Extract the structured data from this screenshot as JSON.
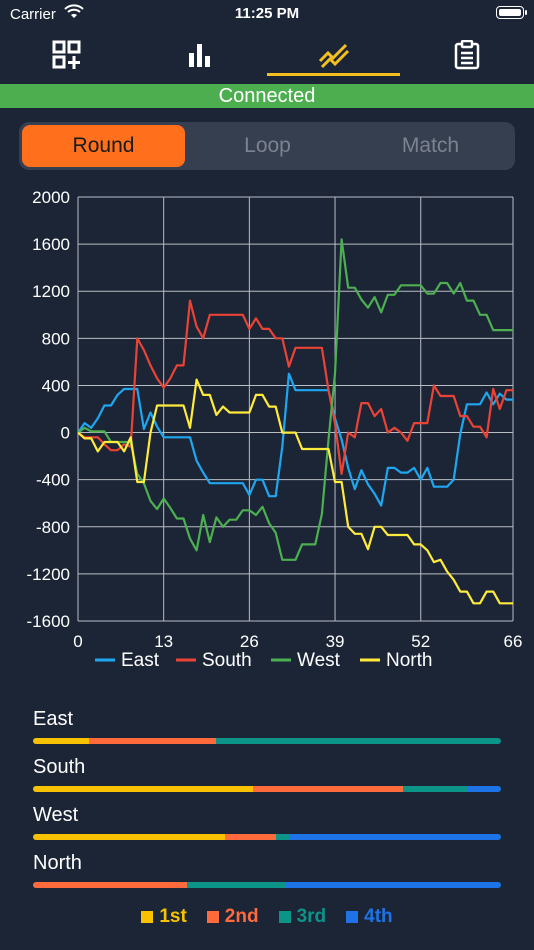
{
  "status_bar": {
    "carrier": "Carrier",
    "time": "11:25 PM"
  },
  "tabs": [
    {
      "icon": "qr-add-icon",
      "active": false
    },
    {
      "icon": "bar-chart-icon",
      "active": false
    },
    {
      "icon": "line-chart-icon",
      "active": true
    },
    {
      "icon": "clipboard-icon",
      "active": false
    }
  ],
  "connection_status": "Connected",
  "segments": {
    "round": "Round",
    "loop": "Loop",
    "match": "Match",
    "selected": "Round"
  },
  "colors": {
    "east": "#1ea7f0",
    "south": "#ea4335",
    "west": "#4caf50",
    "north": "#ffeb3b",
    "first": "#f9c200",
    "second": "#ff6a3d",
    "third": "#0d9488",
    "fourth": "#1e73e6"
  },
  "chart_data": {
    "type": "line",
    "xlim": [
      0,
      66
    ],
    "ylim": [
      -1600,
      2000
    ],
    "x_ticks": [
      "0",
      "13",
      "26",
      "39",
      "52",
      "66"
    ],
    "y_ticks": [
      "2000",
      "1600",
      "1200",
      "800",
      "400",
      "0",
      "-400",
      "-800",
      "-1200",
      "-1600"
    ],
    "series": [
      {
        "name": "East",
        "color": "#1ea7f0",
        "points": [
          [
            0,
            0
          ],
          [
            1,
            80
          ],
          [
            2,
            40
          ],
          [
            3,
            120
          ],
          [
            4,
            230
          ],
          [
            5,
            230
          ],
          [
            6,
            320
          ],
          [
            7,
            370
          ],
          [
            8,
            370
          ],
          [
            9,
            370
          ],
          [
            10,
            30
          ],
          [
            11,
            170
          ],
          [
            12,
            50
          ],
          [
            13,
            -40
          ],
          [
            14,
            -40
          ],
          [
            15,
            -40
          ],
          [
            16,
            -40
          ],
          [
            17,
            -40
          ],
          [
            18,
            -240
          ],
          [
            19,
            -340
          ],
          [
            20,
            -430
          ],
          [
            21,
            -430
          ],
          [
            22,
            -430
          ],
          [
            23,
            -430
          ],
          [
            24,
            -430
          ],
          [
            25,
            -430
          ],
          [
            26,
            -530
          ],
          [
            27,
            -400
          ],
          [
            28,
            -400
          ],
          [
            29,
            -540
          ],
          [
            30,
            -540
          ],
          [
            31,
            -120
          ],
          [
            32,
            500
          ],
          [
            33,
            360
          ],
          [
            34,
            360
          ],
          [
            35,
            360
          ],
          [
            36,
            360
          ],
          [
            37,
            360
          ],
          [
            38,
            360
          ],
          [
            39,
            120
          ],
          [
            40,
            -60
          ],
          [
            41,
            -300
          ],
          [
            42,
            -480
          ],
          [
            43,
            -320
          ],
          [
            44,
            -440
          ],
          [
            45,
            -520
          ],
          [
            46,
            -620
          ],
          [
            47,
            -300
          ],
          [
            48,
            -300
          ],
          [
            49,
            -340
          ],
          [
            50,
            -340
          ],
          [
            51,
            -300
          ],
          [
            52,
            -400
          ],
          [
            53,
            -300
          ],
          [
            54,
            -460
          ],
          [
            55,
            -460
          ],
          [
            56,
            -460
          ],
          [
            57,
            -400
          ],
          [
            58,
            -10
          ],
          [
            59,
            240
          ],
          [
            60,
            240
          ],
          [
            61,
            240
          ],
          [
            62,
            340
          ],
          [
            63,
            240
          ],
          [
            64,
            330
          ],
          [
            65,
            280
          ],
          [
            66,
            280
          ]
        ]
      },
      {
        "name": "South",
        "color": "#ea4335",
        "points": [
          [
            0,
            0
          ],
          [
            1,
            -40
          ],
          [
            2,
            -40
          ],
          [
            3,
            -40
          ],
          [
            4,
            -100
          ],
          [
            5,
            -150
          ],
          [
            6,
            -150
          ],
          [
            7,
            -100
          ],
          [
            8,
            -120
          ],
          [
            9,
            800
          ],
          [
            10,
            700
          ],
          [
            11,
            570
          ],
          [
            12,
            460
          ],
          [
            13,
            380
          ],
          [
            14,
            460
          ],
          [
            15,
            570
          ],
          [
            16,
            570
          ],
          [
            17,
            1120
          ],
          [
            18,
            900
          ],
          [
            19,
            800
          ],
          [
            20,
            1000
          ],
          [
            21,
            1000
          ],
          [
            22,
            1000
          ],
          [
            23,
            1000
          ],
          [
            24,
            1000
          ],
          [
            25,
            1000
          ],
          [
            26,
            880
          ],
          [
            27,
            970
          ],
          [
            28,
            880
          ],
          [
            29,
            880
          ],
          [
            30,
            800
          ],
          [
            31,
            800
          ],
          [
            32,
            560
          ],
          [
            33,
            720
          ],
          [
            34,
            720
          ],
          [
            35,
            720
          ],
          [
            36,
            720
          ],
          [
            37,
            720
          ],
          [
            38,
            360
          ],
          [
            39,
            80
          ],
          [
            40,
            -350
          ],
          [
            41,
            0
          ],
          [
            42,
            -40
          ],
          [
            43,
            250
          ],
          [
            44,
            250
          ],
          [
            45,
            140
          ],
          [
            46,
            200
          ],
          [
            47,
            0
          ],
          [
            48,
            40
          ],
          [
            49,
            0
          ],
          [
            50,
            -70
          ],
          [
            51,
            80
          ],
          [
            52,
            80
          ],
          [
            53,
            80
          ],
          [
            54,
            400
          ],
          [
            55,
            310
          ],
          [
            56,
            310
          ],
          [
            57,
            310
          ],
          [
            58,
            140
          ],
          [
            59,
            140
          ],
          [
            60,
            50
          ],
          [
            61,
            50
          ],
          [
            62,
            -40
          ],
          [
            63,
            370
          ],
          [
            64,
            200
          ],
          [
            65,
            360
          ],
          [
            66,
            360
          ]
        ]
      },
      {
        "name": "West",
        "color": "#4caf50",
        "points": [
          [
            0,
            0
          ],
          [
            1,
            40
          ],
          [
            2,
            10
          ],
          [
            3,
            10
          ],
          [
            4,
            10
          ],
          [
            5,
            -80
          ],
          [
            6,
            -80
          ],
          [
            7,
            -80
          ],
          [
            8,
            -80
          ],
          [
            9,
            -350
          ],
          [
            10,
            -430
          ],
          [
            11,
            -580
          ],
          [
            12,
            -650
          ],
          [
            13,
            -560
          ],
          [
            14,
            -640
          ],
          [
            15,
            -730
          ],
          [
            16,
            -730
          ],
          [
            17,
            -900
          ],
          [
            18,
            -1000
          ],
          [
            19,
            -700
          ],
          [
            20,
            -930
          ],
          [
            21,
            -720
          ],
          [
            22,
            -800
          ],
          [
            23,
            -740
          ],
          [
            24,
            -740
          ],
          [
            25,
            -660
          ],
          [
            26,
            -660
          ],
          [
            27,
            -700
          ],
          [
            28,
            -630
          ],
          [
            29,
            -770
          ],
          [
            30,
            -850
          ],
          [
            31,
            -1080
          ],
          [
            32,
            -1080
          ],
          [
            33,
            -1080
          ],
          [
            34,
            -950
          ],
          [
            35,
            -950
          ],
          [
            36,
            -950
          ],
          [
            37,
            -690
          ],
          [
            38,
            -60
          ],
          [
            39,
            500
          ],
          [
            40,
            1640
          ],
          [
            41,
            1230
          ],
          [
            42,
            1230
          ],
          [
            43,
            1130
          ],
          [
            44,
            1060
          ],
          [
            45,
            1150
          ],
          [
            46,
            1020
          ],
          [
            47,
            1170
          ],
          [
            48,
            1170
          ],
          [
            49,
            1250
          ],
          [
            50,
            1250
          ],
          [
            51,
            1250
          ],
          [
            52,
            1250
          ],
          [
            53,
            1180
          ],
          [
            54,
            1180
          ],
          [
            55,
            1270
          ],
          [
            56,
            1270
          ],
          [
            57,
            1180
          ],
          [
            58,
            1270
          ],
          [
            59,
            1120
          ],
          [
            60,
            1120
          ],
          [
            61,
            1000
          ],
          [
            62,
            1000
          ],
          [
            63,
            870
          ],
          [
            64,
            870
          ],
          [
            65,
            870
          ],
          [
            66,
            870
          ]
        ]
      },
      {
        "name": "North",
        "color": "#ffeb3b",
        "points": [
          [
            0,
            0
          ],
          [
            1,
            -50
          ],
          [
            2,
            -50
          ],
          [
            3,
            -160
          ],
          [
            4,
            -80
          ],
          [
            5,
            -80
          ],
          [
            6,
            -80
          ],
          [
            7,
            -160
          ],
          [
            8,
            -40
          ],
          [
            9,
            -420
          ],
          [
            10,
            -420
          ],
          [
            11,
            0
          ],
          [
            12,
            230
          ],
          [
            13,
            230
          ],
          [
            14,
            230
          ],
          [
            15,
            230
          ],
          [
            16,
            230
          ],
          [
            17,
            40
          ],
          [
            18,
            450
          ],
          [
            19,
            320
          ],
          [
            20,
            320
          ],
          [
            21,
            150
          ],
          [
            22,
            220
          ],
          [
            23,
            170
          ],
          [
            24,
            170
          ],
          [
            25,
            170
          ],
          [
            26,
            170
          ],
          [
            27,
            320
          ],
          [
            28,
            320
          ],
          [
            29,
            220
          ],
          [
            30,
            220
          ],
          [
            31,
            0
          ],
          [
            32,
            0
          ],
          [
            33,
            0
          ],
          [
            34,
            -140
          ],
          [
            35,
            -140
          ],
          [
            36,
            -140
          ],
          [
            37,
            -140
          ],
          [
            38,
            -140
          ],
          [
            39,
            -420
          ],
          [
            40,
            -420
          ],
          [
            41,
            -800
          ],
          [
            42,
            -860
          ],
          [
            43,
            -860
          ],
          [
            44,
            -990
          ],
          [
            45,
            -800
          ],
          [
            46,
            -800
          ],
          [
            47,
            -870
          ],
          [
            48,
            -870
          ],
          [
            49,
            -870
          ],
          [
            50,
            -870
          ],
          [
            51,
            -950
          ],
          [
            52,
            -950
          ],
          [
            53,
            -1000
          ],
          [
            54,
            -1100
          ],
          [
            55,
            -1080
          ],
          [
            56,
            -1180
          ],
          [
            57,
            -1250
          ],
          [
            58,
            -1350
          ],
          [
            59,
            -1350
          ],
          [
            60,
            -1450
          ],
          [
            61,
            -1450
          ],
          [
            62,
            -1350
          ],
          [
            63,
            -1350
          ],
          [
            64,
            -1450
          ],
          [
            65,
            -1450
          ],
          [
            66,
            -1450
          ]
        ]
      }
    ],
    "legend_position": "bottom",
    "grid": true
  },
  "placements": [
    {
      "name": "East",
      "first": 12,
      "second": 27,
      "third": 61,
      "fourth": 0
    },
    {
      "name": "South",
      "first": 47,
      "second": 32,
      "third": 14,
      "fourth": 7
    },
    {
      "name": "West",
      "first": 41,
      "second": 11,
      "third": 3,
      "fourth": 45
    },
    {
      "name": "North",
      "first": 0,
      "second": 33,
      "third": 21,
      "fourth": 46
    }
  ],
  "placement_legend": [
    "1st",
    "2nd",
    "3rd",
    "4th"
  ]
}
